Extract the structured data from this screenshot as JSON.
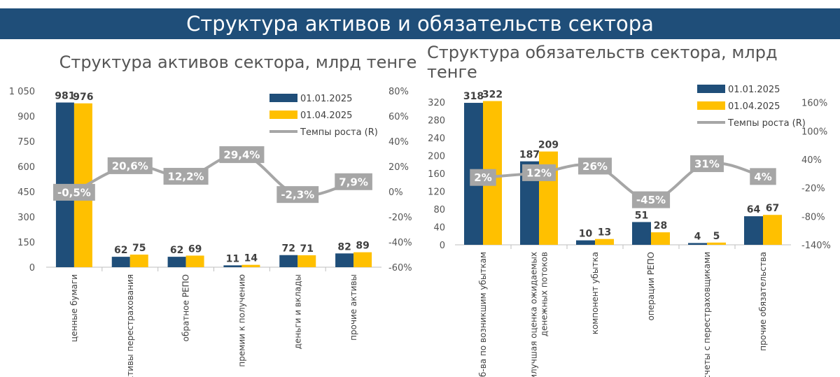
{
  "banner": {
    "title": "Структура активов и обязательств сектора"
  },
  "colors": {
    "series1": "#1f4e79",
    "series2": "#ffc000",
    "growth_line": "#a6a6a6",
    "growth_label_bg": "#a6a6a6",
    "banner_bg": "#1f4e79"
  },
  "chart_data": [
    {
      "type": "bar",
      "title": "Структура активов сектора, млрд тенге",
      "categories": [
        "ценные бумаги",
        "активы перестрахования",
        "обратное РЕПО",
        "премии к получению",
        "деньги и вклады",
        "прочие активы"
      ],
      "series": [
        {
          "name": "01.01.2025",
          "values": [
            981,
            62,
            62,
            11,
            72,
            82
          ],
          "axis": "left"
        },
        {
          "name": "01.04.2025",
          "values": [
            976,
            75,
            69,
            14,
            71,
            89
          ],
          "axis": "left"
        },
        {
          "name": "Темпы роста (R)",
          "type": "line",
          "axis": "right",
          "values": [
            -0.5,
            20.6,
            12.2,
            29.4,
            -2.3,
            7.9
          ],
          "labels": [
            "-0,5%",
            "20,6%",
            "12,2%",
            "29,4%",
            "-2,3%",
            "7,9%"
          ]
        }
      ],
      "y_left": {
        "min": 0,
        "max": 1050,
        "ticks": [
          0,
          150,
          300,
          450,
          600,
          750,
          900,
          1050
        ],
        "tick_labels": [
          "0",
          "150",
          "300",
          "450",
          "600",
          "750",
          "900",
          "1 050"
        ]
      },
      "y_right": {
        "min": -60,
        "max": 80,
        "ticks": [
          -60,
          -40,
          -20,
          0,
          20,
          40,
          60,
          80
        ],
        "tick_labels": [
          "-60%",
          "-40%",
          "-20%",
          "0%",
          "20%",
          "40%",
          "60%",
          "80%"
        ]
      },
      "legend": "top-right",
      "grid": false
    },
    {
      "type": "bar",
      "title": "Структура обязательств сектора, млрд тенге",
      "categories": [
        "об-ва по возникшим убыткам",
        "наилучшая оценка ожидаемых денежных потоков",
        "компонент убытка",
        "операции РЕПО",
        "расчеты с перестраховщиками",
        "прочие обязательства"
      ],
      "category_lines": [
        [
          "об-ва по возникшим убыткам"
        ],
        [
          "наилучшая оценка ожидаемых",
          "денежных потоков"
        ],
        [
          "компонент убытка"
        ],
        [
          "операции РЕПО"
        ],
        [
          "расчеты с перестраховщиками"
        ],
        [
          "прочие обязательства"
        ]
      ],
      "series": [
        {
          "name": "01.01.2025",
          "values": [
            318,
            187,
            10,
            51,
            4,
            64
          ],
          "axis": "left"
        },
        {
          "name": "01.04.2025",
          "values": [
            322,
            209,
            13,
            28,
            5,
            67
          ],
          "axis": "left"
        },
        {
          "name": "Темпы роста (R)",
          "type": "line",
          "axis": "right",
          "values": [
            2,
            12,
            26,
            -45,
            31,
            4
          ],
          "labels": [
            "2%",
            "12%",
            "26%",
            "-45%",
            "31%",
            "4%"
          ]
        }
      ],
      "y_left": {
        "min": 0,
        "max": 340,
        "ticks": [
          0,
          40,
          80,
          120,
          160,
          200,
          240,
          280,
          320
        ],
        "tick_labels": [
          "0",
          "40",
          "80",
          "120",
          "160",
          "200",
          "240",
          "280",
          "320"
        ]
      },
      "y_right": {
        "min": -140,
        "max": 180,
        "ticks": [
          -140,
          -80,
          -20,
          40,
          100,
          160
        ],
        "tick_labels": [
          "-140%",
          "-80%",
          "-20%",
          "40%",
          "100%",
          "160%"
        ]
      },
      "legend": "top-right",
      "grid": false
    }
  ]
}
